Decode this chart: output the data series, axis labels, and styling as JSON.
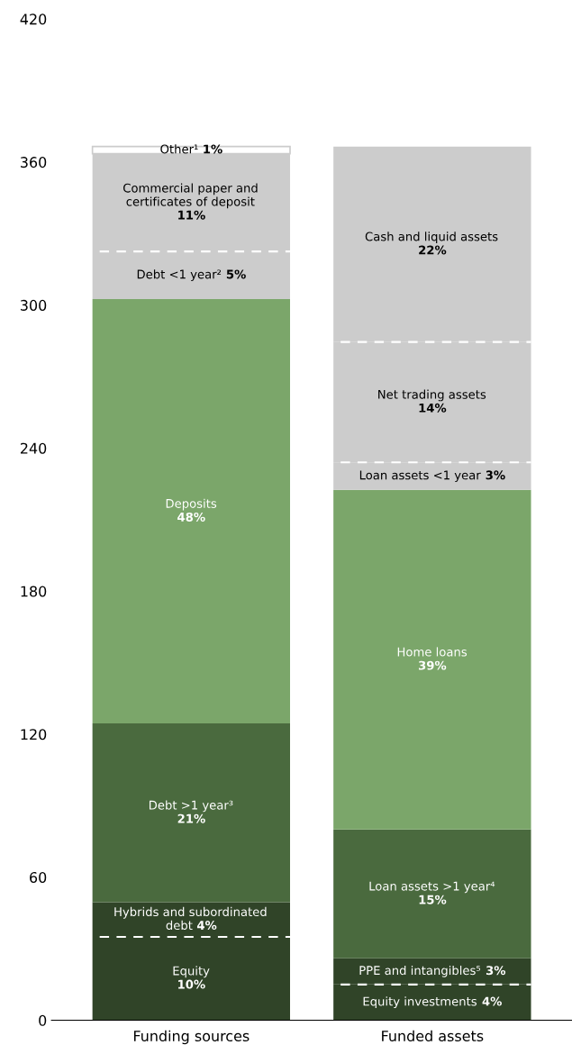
{
  "chart_data": {
    "type": "bar",
    "stacked": true,
    "categories": [
      "Funding sources",
      "Funded assets"
    ],
    "ylim": [
      0,
      420
    ],
    "yticks": [
      0,
      60,
      120,
      180,
      240,
      300,
      360,
      420
    ],
    "grid": false,
    "legend": false,
    "series": [
      {
        "name": "Equity",
        "color": "#304428",
        "values": [
          35,
          null
        ]
      },
      {
        "name": "Hybrids and subordinated\ndebt",
        "color": "#304428",
        "values": [
          14.5,
          null
        ]
      },
      {
        "name": "Debt >1 year³",
        "color": "#4a6a3e",
        "values": [
          75,
          null
        ]
      },
      {
        "name": "Deposits",
        "color": "#7ba66a",
        "values": [
          178,
          null
        ]
      },
      {
        "name": "Debt <1 year²",
        "color": "#cccccc",
        "values": [
          20,
          null
        ]
      },
      {
        "name": "Commercial paper and\ncertificates of deposit",
        "color": "#cccccc",
        "values": [
          41,
          null
        ]
      },
      {
        "name": "Other¹",
        "color": "#ffffff",
        "values": [
          3,
          null
        ]
      },
      {
        "name": "Equity investments",
        "color": "#304428",
        "values": [
          null,
          15
        ]
      },
      {
        "name": "PPE and intangibles⁵",
        "color": "#304428",
        "values": [
          null,
          11
        ]
      },
      {
        "name": "Loan assets >1 year⁴",
        "color": "#4a6a3e",
        "values": [
          null,
          54
        ]
      },
      {
        "name": "Home loans",
        "color": "#7ba66a",
        "values": [
          null,
          142.5
        ]
      },
      {
        "name": "Loan assets <1 year",
        "color": "#cccccc",
        "values": [
          null,
          11.5
        ]
      },
      {
        "name": "Net trading assets",
        "color": "#cccccc",
        "values": [
          null,
          50.5
        ]
      },
      {
        "name": "Cash and liquid assets",
        "color": "#cccccc",
        "values": [
          null,
          82
        ]
      }
    ],
    "annotations": [
      "10%",
      "4%",
      "21%",
      "48%",
      "5%",
      "11%",
      "1%",
      "4%",
      "3%",
      "15%",
      "39%",
      "3%",
      "14%",
      "22%"
    ]
  }
}
